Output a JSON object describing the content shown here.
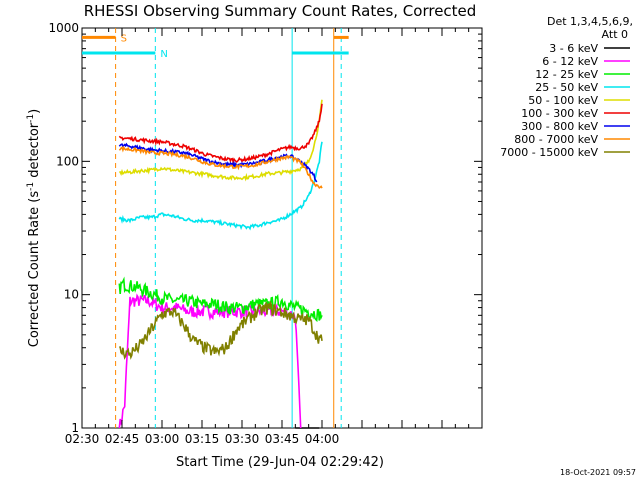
{
  "chart_data": {
    "type": "line",
    "title": "RHESSI Observing Summary Count Rates, Corrected",
    "xlabel": "Start Time (29-Jun-04 02:29:42)",
    "ylabel_main": "Corrected Count Rate (s",
    "ylabel_sup1": "-1",
    "ylabel_mid": " detector",
    "ylabel_sup2": "-1",
    "ylabel_end": ")",
    "footer": "18-Oct-2021 09:57",
    "legend_header": [
      "Det 1,3,4,5,6,9,",
      "Att 0"
    ],
    "x_range_min": [
      0,
      150
    ],
    "y_range": [
      1,
      1000
    ],
    "y_scale": "log",
    "x_ticks": [
      {
        "label": "02:30",
        "min": 0
      },
      {
        "label": "02:45",
        "min": 15
      },
      {
        "label": "03:00",
        "min": 30
      },
      {
        "label": "03:15",
        "min": 45
      },
      {
        "label": "03:30",
        "min": 60
      },
      {
        "label": "03:45",
        "min": 75
      },
      {
        "label": "04:00",
        "min": 90
      }
    ],
    "y_ticks": [
      {
        "label": "1",
        "value": 1
      },
      {
        "label": "10",
        "value": 10
      },
      {
        "label": "100",
        "value": 100
      },
      {
        "label": "1000",
        "value": 1000
      }
    ],
    "flags": [
      {
        "label": "S",
        "color": "#ff8800",
        "level": 850
      },
      {
        "label": "N",
        "color": "#00e5ee",
        "level": 650
      }
    ],
    "series": [
      {
        "name": "3 - 6 keV",
        "color": "#000000",
        "x": [
          80,
          81,
          82,
          83,
          84,
          85,
          86,
          87,
          88,
          89
        ],
        "y": [
          1,
          1,
          1,
          1,
          1,
          1,
          1,
          1,
          1,
          1
        ]
      },
      {
        "name": "6 - 12 keV",
        "color": "#ff00ff",
        "x": [
          14,
          16,
          18,
          20,
          25,
          30,
          35,
          40,
          45,
          50,
          55,
          60,
          65,
          70,
          75,
          80,
          82
        ],
        "y": [
          1,
          1.5,
          9,
          9,
          9,
          8,
          8,
          7.5,
          7.5,
          7.5,
          7.5,
          7.5,
          7.5,
          7.5,
          7.5,
          7,
          1
        ]
      },
      {
        "name": "12 - 25 keV",
        "color": "#00ee00",
        "x": [
          14,
          15,
          20,
          25,
          30,
          35,
          40,
          45,
          50,
          55,
          60,
          65,
          70,
          75,
          80,
          85,
          90
        ],
        "y": [
          11,
          12,
          11.5,
          10.5,
          9.5,
          9,
          9,
          8.5,
          8.5,
          8,
          8,
          8.5,
          8.5,
          9,
          8,
          7.5,
          7
        ]
      },
      {
        "name": "25 - 50 keV",
        "color": "#00e5ee",
        "x": [
          14,
          18,
          22,
          26,
          30,
          34,
          38,
          42,
          46,
          50,
          54,
          58,
          62,
          66,
          70,
          74,
          78,
          82,
          85,
          87,
          89,
          90
        ],
        "y": [
          37,
          36,
          38,
          38,
          40,
          39,
          37,
          36,
          36,
          35,
          34,
          33,
          32,
          33,
          35,
          36,
          40,
          45,
          55,
          70,
          100,
          140
        ]
      },
      {
        "name": "50 - 100 keV",
        "color": "#dddd00",
        "x": [
          14,
          18,
          22,
          26,
          30,
          34,
          38,
          42,
          46,
          50,
          54,
          58,
          62,
          66,
          70,
          74,
          78,
          82,
          85,
          87,
          89,
          90
        ],
        "y": [
          82,
          83,
          85,
          86,
          89,
          86,
          84,
          82,
          80,
          78,
          76,
          75,
          76,
          78,
          81,
          82,
          84,
          88,
          100,
          130,
          200,
          290
        ]
      },
      {
        "name": "100 - 300 keV",
        "color": "#ee0000",
        "x": [
          14,
          18,
          22,
          26,
          30,
          34,
          38,
          42,
          46,
          50,
          54,
          58,
          62,
          66,
          70,
          74,
          78,
          82,
          85,
          87,
          89,
          90
        ],
        "y": [
          150,
          148,
          145,
          142,
          140,
          135,
          130,
          122,
          113,
          108,
          104,
          102,
          104,
          108,
          114,
          122,
          128,
          125,
          135,
          160,
          200,
          270
        ]
      },
      {
        "name": "300 - 800 keV",
        "color": "#0000ee",
        "x": [
          14,
          18,
          22,
          26,
          30,
          34,
          38,
          42,
          46,
          50,
          54,
          58,
          62,
          66,
          70,
          74,
          78,
          82,
          85,
          87,
          88
        ],
        "y": [
          132,
          130,
          126,
          122,
          120,
          118,
          116,
          110,
          103,
          98,
          95,
          94,
          95,
          98,
          103,
          108,
          110,
          100,
          88,
          78,
          70
        ]
      },
      {
        "name": "800 - 7000 keV",
        "color": "#ff8800",
        "x": [
          14,
          18,
          22,
          26,
          30,
          34,
          38,
          42,
          46,
          50,
          54,
          58,
          62,
          66,
          70,
          74,
          78,
          82,
          85,
          87,
          89,
          90
        ],
        "y": [
          125,
          123,
          120,
          116,
          115,
          113,
          110,
          105,
          98,
          94,
          92,
          91,
          92,
          95,
          100,
          105,
          108,
          98,
          80,
          68,
          65,
          63
        ]
      },
      {
        "name": "7000 - 15000 keV",
        "color": "#808000",
        "x": [
          14,
          18,
          22,
          26,
          30,
          34,
          38,
          42,
          46,
          50,
          54,
          58,
          62,
          66,
          70,
          74,
          78,
          82,
          85,
          88,
          90
        ],
        "y": [
          3.8,
          3.6,
          4.2,
          5.5,
          7.2,
          7.5,
          6,
          4.5,
          4,
          3.7,
          4,
          5.5,
          6.5,
          7.5,
          8,
          7.5,
          7,
          6.5,
          6.5,
          5,
          4.5
        ]
      }
    ],
    "vlines": [
      {
        "min": 12.6,
        "color": "#ff8800",
        "dash": true
      },
      {
        "min": 27.5,
        "color": "#00e5ee",
        "dash": true
      },
      {
        "min": 78.8,
        "color": "#00e5ee",
        "dash": false
      },
      {
        "min": 94.4,
        "color": "#ff8800",
        "dash": false
      },
      {
        "min": 97.2,
        "color": "#00e5ee",
        "dash": true
      }
    ]
  }
}
